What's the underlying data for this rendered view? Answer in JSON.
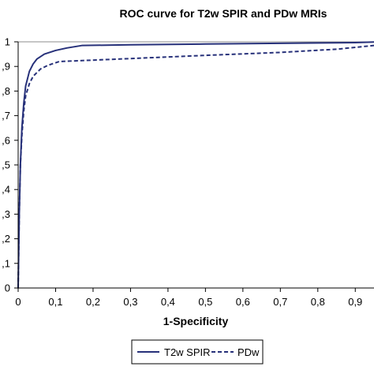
{
  "chart_data": {
    "type": "line",
    "title": "ROC curve for T2w SPIR and PDw MRIs",
    "xlabel": "1-Specificity",
    "ylabel": "",
    "xlim": [
      0,
      0.95
    ],
    "ylim": [
      0,
      1
    ],
    "x_ticks": [
      0,
      0.1,
      0.2,
      0.3,
      0.4,
      0.5,
      0.6,
      0.7,
      0.8,
      0.9
    ],
    "x_tick_labels": [
      "0",
      "0,1",
      "0,2",
      "0,3",
      "0,4",
      "0,5",
      "0,6",
      "0,7",
      "0,8",
      "0,9"
    ],
    "y_ticks": [
      0,
      0.1,
      0.2,
      0.3,
      0.4,
      0.5,
      0.6,
      0.7,
      0.8,
      0.9,
      1
    ],
    "y_tick_labels": [
      "0",
      ",1",
      ",2",
      ",3",
      ",4",
      ",5",
      ",6",
      ",7",
      ",8",
      ",9",
      "1"
    ],
    "grid": false,
    "reference_line_y": 1,
    "legend_position": "bottom",
    "series": [
      {
        "name": "T2w SPIR",
        "style": "solid",
        "color": "#27317a",
        "points": [
          [
            0,
            0
          ],
          [
            0.003,
            0.3
          ],
          [
            0.006,
            0.5
          ],
          [
            0.01,
            0.65
          ],
          [
            0.015,
            0.75
          ],
          [
            0.02,
            0.82
          ],
          [
            0.03,
            0.88
          ],
          [
            0.04,
            0.91
          ],
          [
            0.05,
            0.93
          ],
          [
            0.07,
            0.95
          ],
          [
            0.1,
            0.965
          ],
          [
            0.13,
            0.975
          ],
          [
            0.17,
            0.985
          ],
          [
            0.3,
            0.988
          ],
          [
            0.5,
            0.991
          ],
          [
            0.7,
            0.994
          ],
          [
            0.9,
            0.997
          ],
          [
            0.95,
            0.999
          ]
        ]
      },
      {
        "name": "PDw",
        "style": "dashed",
        "color": "#27317a",
        "points": [
          [
            0,
            0
          ],
          [
            0.003,
            0.3
          ],
          [
            0.006,
            0.5
          ],
          [
            0.01,
            0.62
          ],
          [
            0.015,
            0.72
          ],
          [
            0.02,
            0.78
          ],
          [
            0.03,
            0.83
          ],
          [
            0.04,
            0.86
          ],
          [
            0.06,
            0.89
          ],
          [
            0.08,
            0.905
          ],
          [
            0.11,
            0.92
          ],
          [
            0.3,
            0.932
          ],
          [
            0.5,
            0.945
          ],
          [
            0.7,
            0.957
          ],
          [
            0.85,
            0.97
          ],
          [
            0.95,
            0.985
          ]
        ]
      }
    ]
  }
}
